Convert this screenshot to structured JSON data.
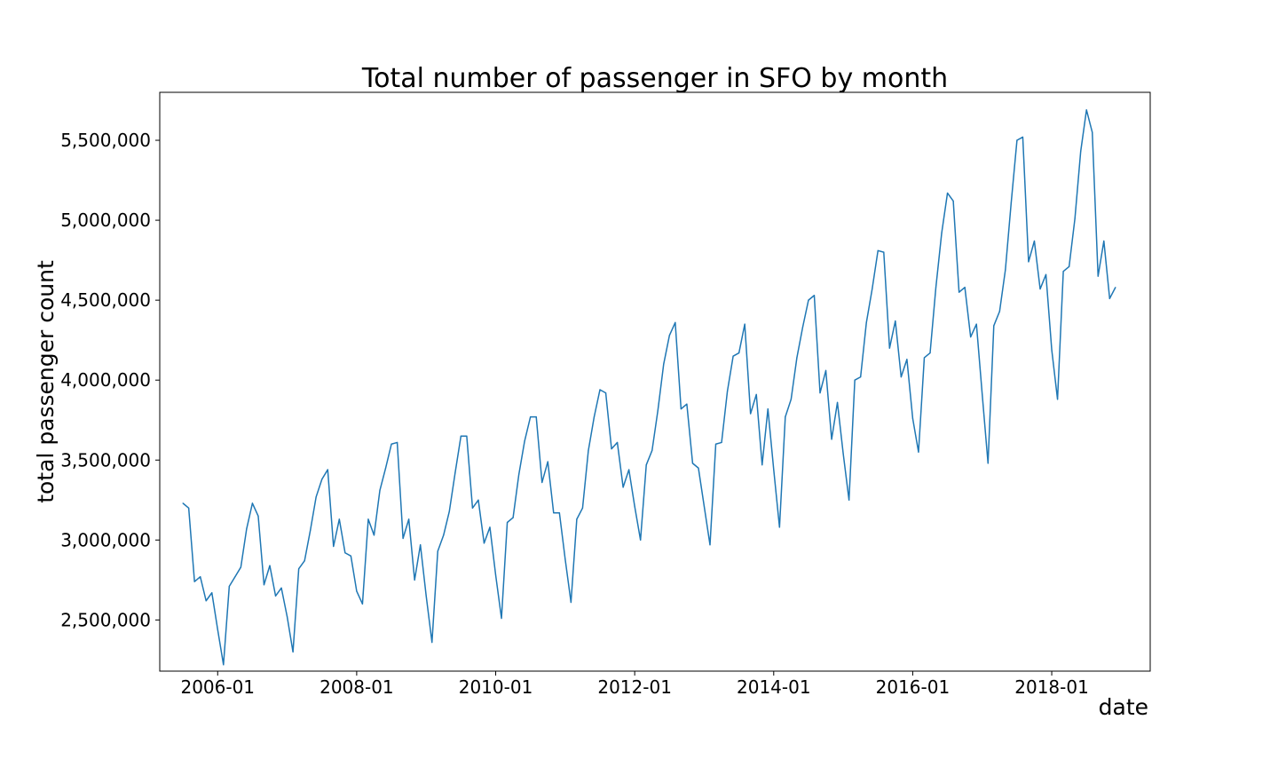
{
  "chart_data": {
    "type": "line",
    "title": "Total number of passenger in SFO by month",
    "xlabel": "date",
    "ylabel": "total passenger count",
    "x_range": [
      "2005-03",
      "2019-06"
    ],
    "ylim": [
      2180000,
      5800000
    ],
    "grid": false,
    "x_ticks": [
      "2006-01",
      "2008-01",
      "2010-01",
      "2012-01",
      "2014-01",
      "2016-01",
      "2018-01"
    ],
    "y_ticks": [
      {
        "value": 2500000,
        "label": "2,500,000"
      },
      {
        "value": 3000000,
        "label": "3,000,000"
      },
      {
        "value": 3500000,
        "label": "3,500,000"
      },
      {
        "value": 4000000,
        "label": "4,000,000"
      },
      {
        "value": 4500000,
        "label": "4,500,000"
      },
      {
        "value": 5000000,
        "label": "5,000,000"
      },
      {
        "value": 5500000,
        "label": "5,500,000"
      }
    ],
    "series": [
      {
        "color": "#1f77b4",
        "x": [
          "2005-07",
          "2005-08",
          "2005-09",
          "2005-10",
          "2005-11",
          "2005-12",
          "2006-01",
          "2006-02",
          "2006-03",
          "2006-04",
          "2006-05",
          "2006-06",
          "2006-07",
          "2006-08",
          "2006-09",
          "2006-10",
          "2006-11",
          "2006-12",
          "2007-01",
          "2007-02",
          "2007-03",
          "2007-04",
          "2007-05",
          "2007-06",
          "2007-07",
          "2007-08",
          "2007-09",
          "2007-10",
          "2007-11",
          "2007-12",
          "2008-01",
          "2008-02",
          "2008-03",
          "2008-04",
          "2008-05",
          "2008-06",
          "2008-07",
          "2008-08",
          "2008-09",
          "2008-10",
          "2008-11",
          "2008-12",
          "2009-01",
          "2009-02",
          "2009-03",
          "2009-04",
          "2009-05",
          "2009-06",
          "2009-07",
          "2009-08",
          "2009-09",
          "2009-10",
          "2009-11",
          "2009-12",
          "2010-01",
          "2010-02",
          "2010-03",
          "2010-04",
          "2010-05",
          "2010-06",
          "2010-07",
          "2010-08",
          "2010-09",
          "2010-10",
          "2010-11",
          "2010-12",
          "2011-01",
          "2011-02",
          "2011-03",
          "2011-04",
          "2011-05",
          "2011-06",
          "2011-07",
          "2011-08",
          "2011-09",
          "2011-10",
          "2011-11",
          "2011-12",
          "2012-01",
          "2012-02",
          "2012-03",
          "2012-04",
          "2012-05",
          "2012-06",
          "2012-07",
          "2012-08",
          "2012-09",
          "2012-10",
          "2012-11",
          "2012-12",
          "2013-01",
          "2013-02",
          "2013-03",
          "2013-04",
          "2013-05",
          "2013-06",
          "2013-07",
          "2013-08",
          "2013-09",
          "2013-10",
          "2013-11",
          "2013-12",
          "2014-01",
          "2014-02",
          "2014-03",
          "2014-04",
          "2014-05",
          "2014-06",
          "2014-07",
          "2014-08",
          "2014-09",
          "2014-10",
          "2014-11",
          "2014-12",
          "2015-01",
          "2015-02",
          "2015-03",
          "2015-04",
          "2015-05",
          "2015-06",
          "2015-07",
          "2015-08",
          "2015-09",
          "2015-10",
          "2015-11",
          "2015-12",
          "2016-01",
          "2016-02",
          "2016-03",
          "2016-04",
          "2016-05",
          "2016-06",
          "2016-07",
          "2016-08",
          "2016-09",
          "2016-10",
          "2016-11",
          "2016-12",
          "2017-01",
          "2017-02",
          "2017-03",
          "2017-04",
          "2017-05",
          "2017-06",
          "2017-07",
          "2017-08",
          "2017-09",
          "2017-10",
          "2017-11",
          "2017-12",
          "2018-01",
          "2018-02",
          "2018-03",
          "2018-04",
          "2018-05",
          "2018-06",
          "2018-07",
          "2018-08",
          "2018-09",
          "2018-10",
          "2018-11",
          "2018-12"
        ],
        "y": [
          3230000,
          3200000,
          2740000,
          2770000,
          2620000,
          2670000,
          2440000,
          2220000,
          2710000,
          2770000,
          2830000,
          3070000,
          3230000,
          3150000,
          2720000,
          2840000,
          2650000,
          2700000,
          2520000,
          2300000,
          2820000,
          2870000,
          3060000,
          3270000,
          3380000,
          3440000,
          2960000,
          3130000,
          2920000,
          2900000,
          2680000,
          2600000,
          3130000,
          3030000,
          3310000,
          3450000,
          3600000,
          3610000,
          3010000,
          3130000,
          2750000,
          2970000,
          2650000,
          2360000,
          2930000,
          3030000,
          3180000,
          3420000,
          3650000,
          3650000,
          3200000,
          3250000,
          2980000,
          3080000,
          2780000,
          2510000,
          3110000,
          3140000,
          3410000,
          3620000,
          3770000,
          3770000,
          3360000,
          3490000,
          3170000,
          3170000,
          2880000,
          2610000,
          3130000,
          3200000,
          3560000,
          3770000,
          3940000,
          3920000,
          3570000,
          3610000,
          3330000,
          3440000,
          3210000,
          3000000,
          3470000,
          3560000,
          3810000,
          4100000,
          4280000,
          4360000,
          3820000,
          3850000,
          3480000,
          3450000,
          3210000,
          2970000,
          3600000,
          3610000,
          3930000,
          4150000,
          4170000,
          4350000,
          3790000,
          3910000,
          3470000,
          3820000,
          3440000,
          3080000,
          3770000,
          3880000,
          4140000,
          4330000,
          4500000,
          4530000,
          3920000,
          4060000,
          3630000,
          3860000,
          3540000,
          3250000,
          4000000,
          4020000,
          4360000,
          4570000,
          4810000,
          4800000,
          4200000,
          4370000,
          4020000,
          4130000,
          3760000,
          3550000,
          4140000,
          4170000,
          4580000,
          4920000,
          5170000,
          5120000,
          4550000,
          4580000,
          4270000,
          4350000,
          3910000,
          3480000,
          4340000,
          4430000,
          4690000,
          5110000,
          5500000,
          5520000,
          4740000,
          4870000,
          4570000,
          4660000,
          4190000,
          3880000,
          4680000,
          4710000,
          5010000,
          5430000,
          5690000,
          5550000,
          4650000,
          4870000,
          4510000,
          4580000
        ]
      }
    ]
  }
}
